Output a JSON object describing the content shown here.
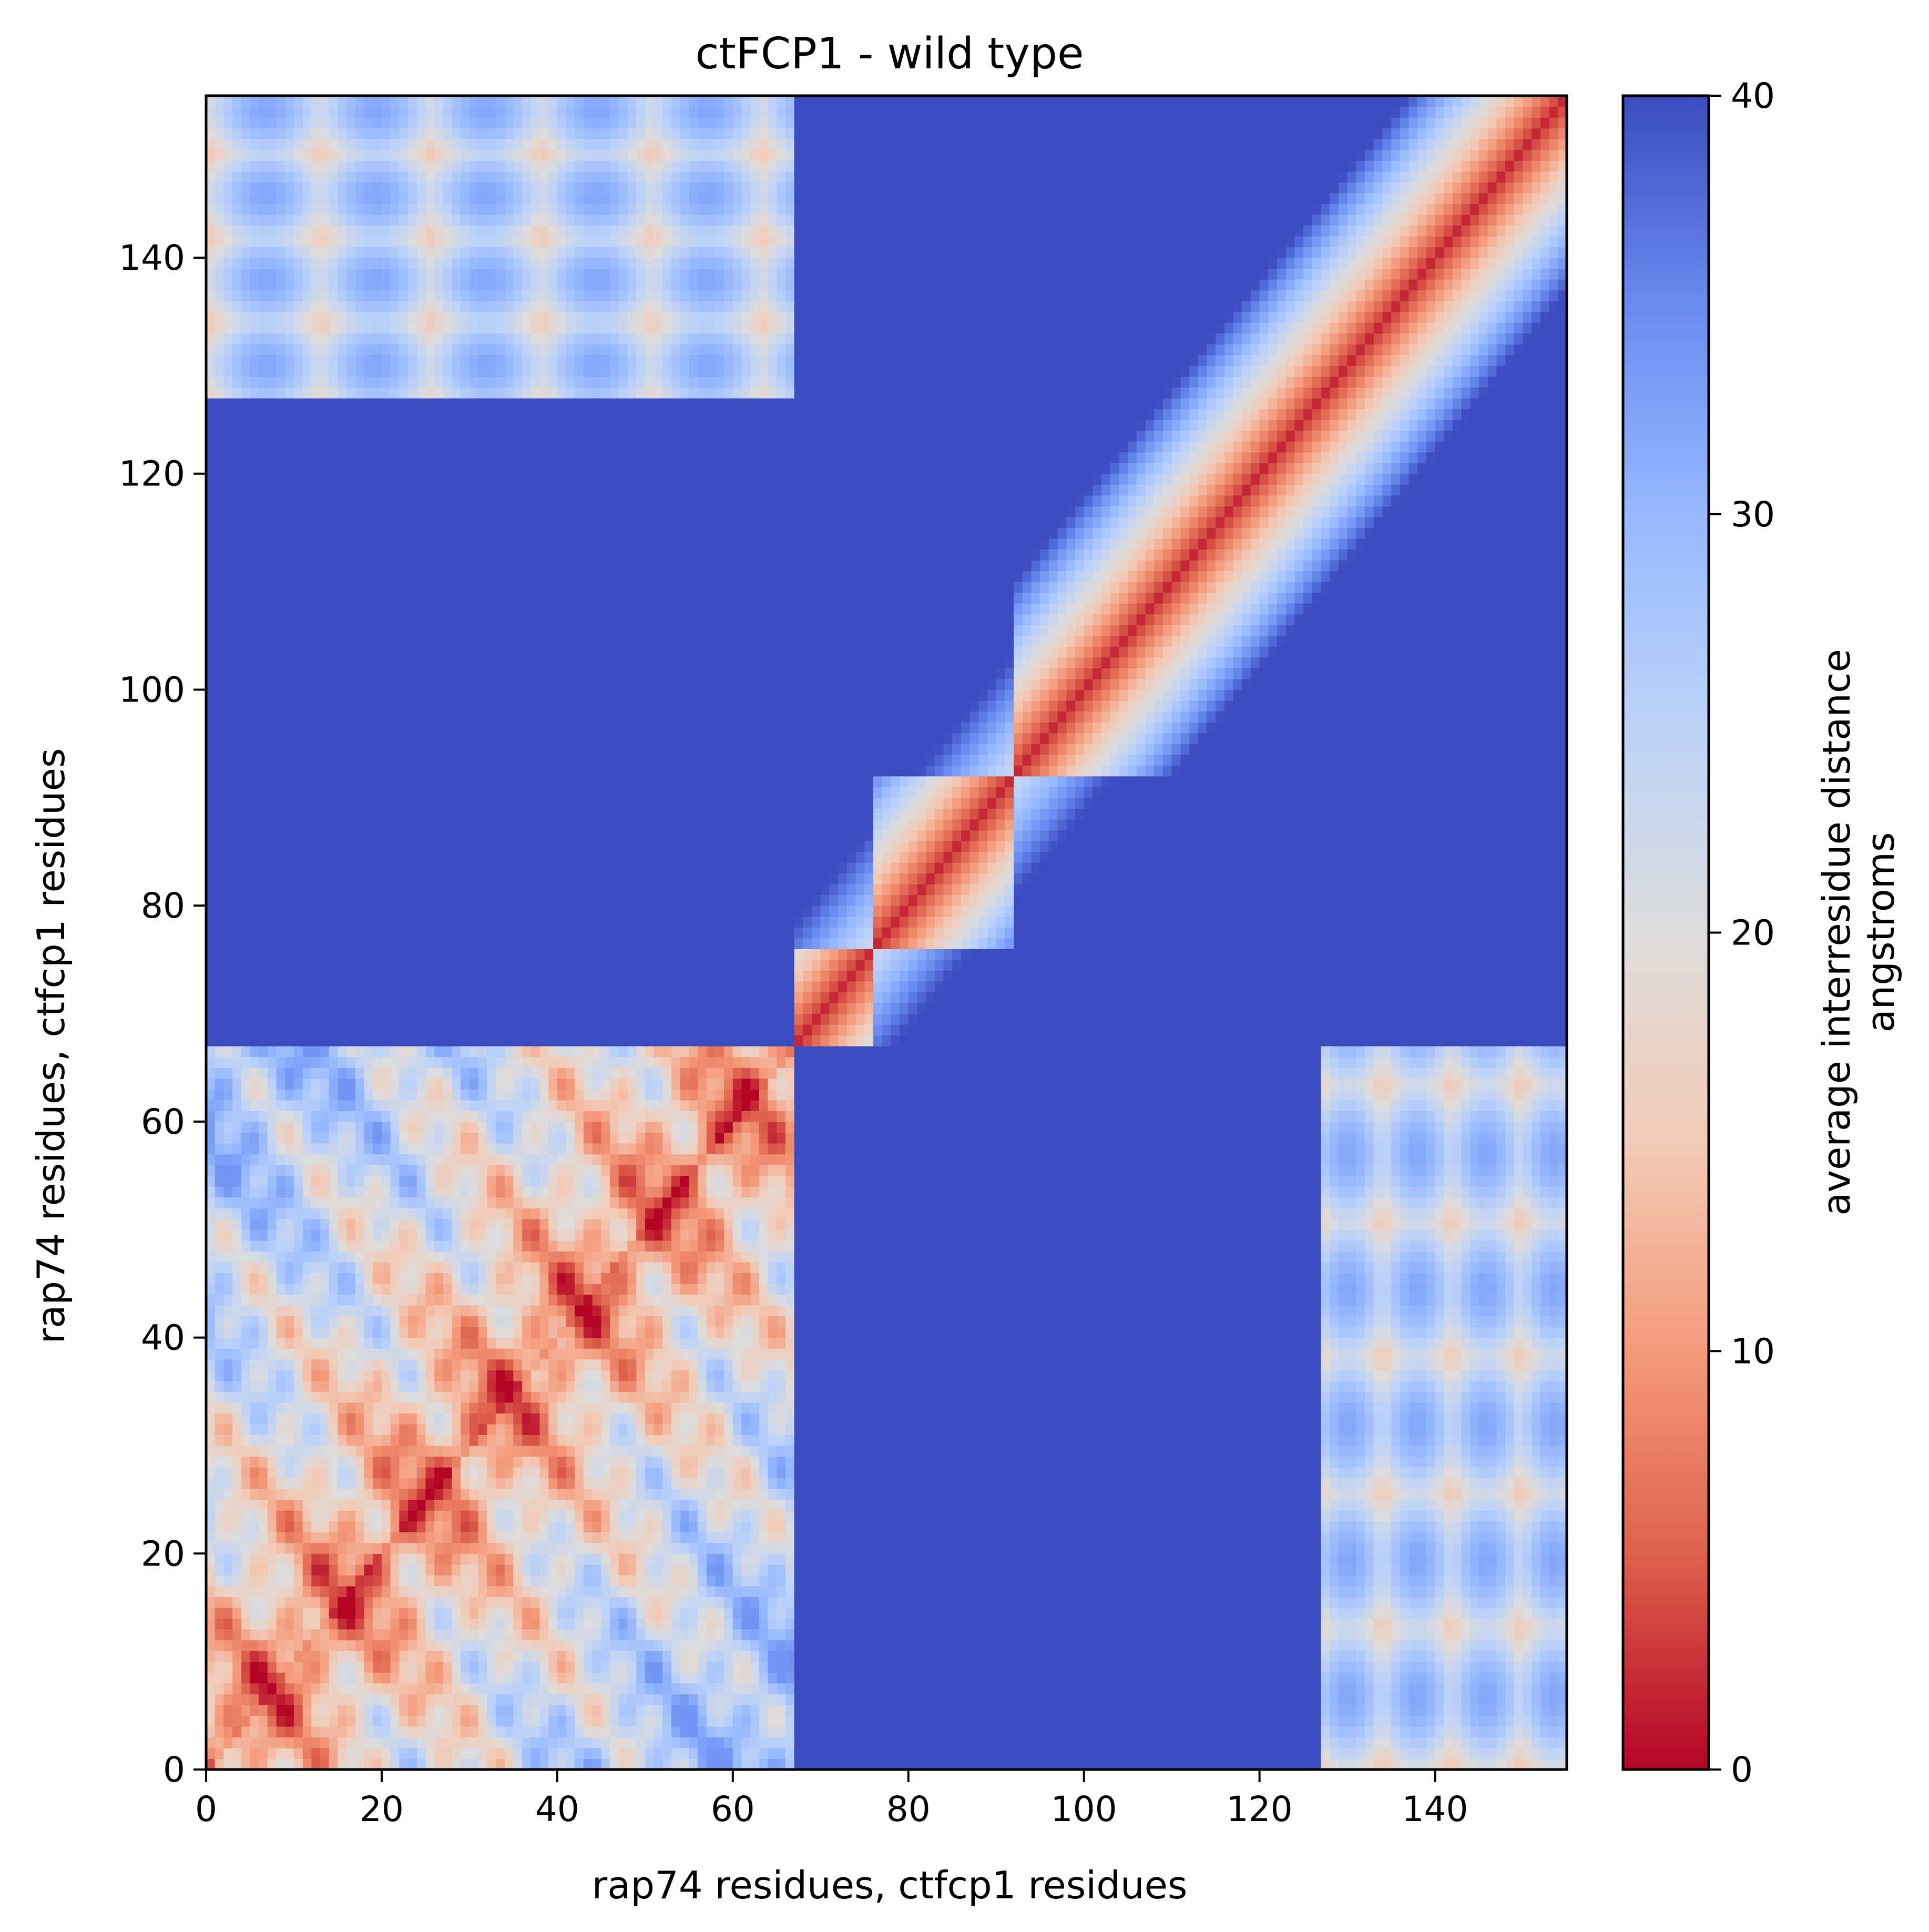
{
  "chart_data": {
    "type": "heatmap",
    "title": "ctFCP1 - wild type",
    "xlabel": "rap74 residues, ctfcp1 residues",
    "ylabel": "rap74 residues, ctfcp1 residues",
    "colorbar_label_line1": "average interresidue distance",
    "colorbar_label_line2": "angstroms",
    "xlim": [
      0,
      155
    ],
    "ylim": [
      0,
      155
    ],
    "x_ticks": [
      0,
      20,
      40,
      60,
      80,
      100,
      120,
      140
    ],
    "y_ticks": [
      0,
      20,
      40,
      60,
      80,
      100,
      120,
      140
    ],
    "colorbar_ticks": [
      0,
      10,
      20,
      30,
      40
    ],
    "colorbar_range": [
      0,
      40
    ],
    "colormap": "coolwarm_r",
    "colors": {
      "low": "#b40426",
      "mid": "#dddddd",
      "high": "#3b4cc0"
    },
    "segments": {
      "rap74": [
        0,
        67
      ],
      "ctfcp1_a": [
        67,
        76
      ],
      "ctfcp1_b": [
        76,
        92
      ],
      "ctfcp1_c": [
        92,
        155
      ]
    },
    "intermolecular_contacts": [
      {
        "x_range": [
          0,
          67
        ],
        "y_range": [
          127,
          155
        ],
        "min_distance": 12
      },
      {
        "x_range": [
          127,
          155
        ],
        "y_range": [
          0,
          67
        ],
        "min_distance": 12
      }
    ],
    "ctfcp1_region_max_distance": 40
  }
}
